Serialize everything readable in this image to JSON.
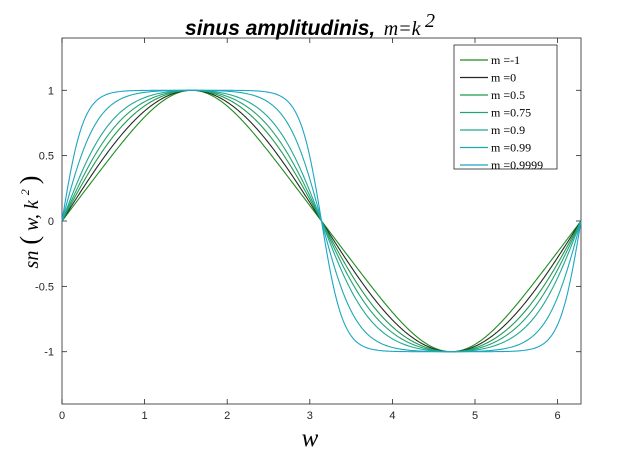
{
  "chart_data": {
    "type": "line",
    "title": "sinus amplitudinis,",
    "title_math": "m=k",
    "title_math_sup": "2",
    "xlabel": "w",
    "ylabel": {
      "func": "sn",
      "arg1": "w, k",
      "arg_sup": "2"
    },
    "xlim": [
      0,
      6.2832
    ],
    "ylim": [
      -1.4,
      1.4
    ],
    "x_ticks": [
      "0",
      "1",
      "2",
      "3",
      "4",
      "5",
      "6"
    ],
    "y_ticks": [
      "-1",
      "-0.5",
      "0",
      "0.5",
      "1"
    ],
    "grid": false,
    "legend_position": "top-right",
    "series": [
      {
        "name": "m =-1",
        "m": -1,
        "color": "#1e8c1e"
      },
      {
        "name": "m =0",
        "m": 0,
        "color": "#262626"
      },
      {
        "name": "m =0.5",
        "m": 0.5,
        "color": "#1f9a4d"
      },
      {
        "name": "m =0.75",
        "m": 0.75,
        "color": "#24a372"
      },
      {
        "name": "m =0.9",
        "m": 0.9,
        "color": "#22a995"
      },
      {
        "name": "m =0.99",
        "m": 0.99,
        "color": "#1ea9b1"
      },
      {
        "name": "m =0.9999",
        "m": 0.9999,
        "color": "#1ea4c8"
      }
    ]
  }
}
